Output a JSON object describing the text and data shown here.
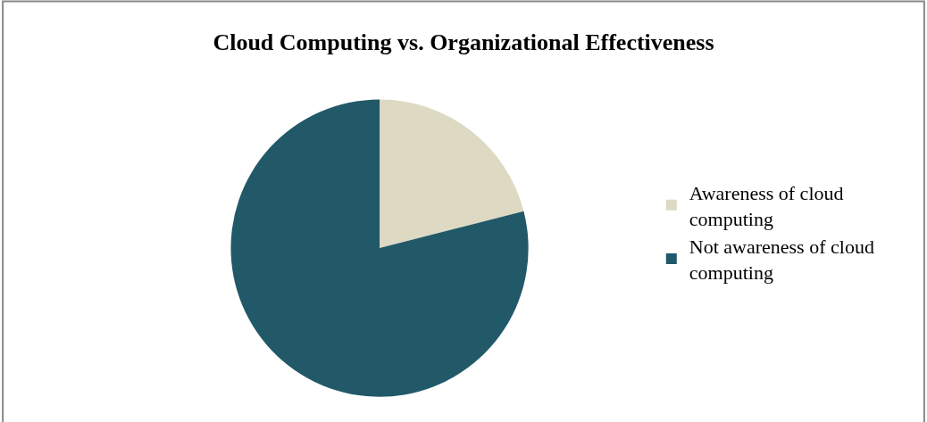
{
  "chart_data": {
    "type": "pie",
    "title": "Cloud Computing vs. Organizational Effectiveness",
    "categories": [
      "Awareness of cloud computing",
      "Not awareness of cloud computing"
    ],
    "values": [
      21,
      79
    ],
    "colors": [
      "#ddd9c3",
      "#215968"
    ],
    "legend": "right"
  }
}
